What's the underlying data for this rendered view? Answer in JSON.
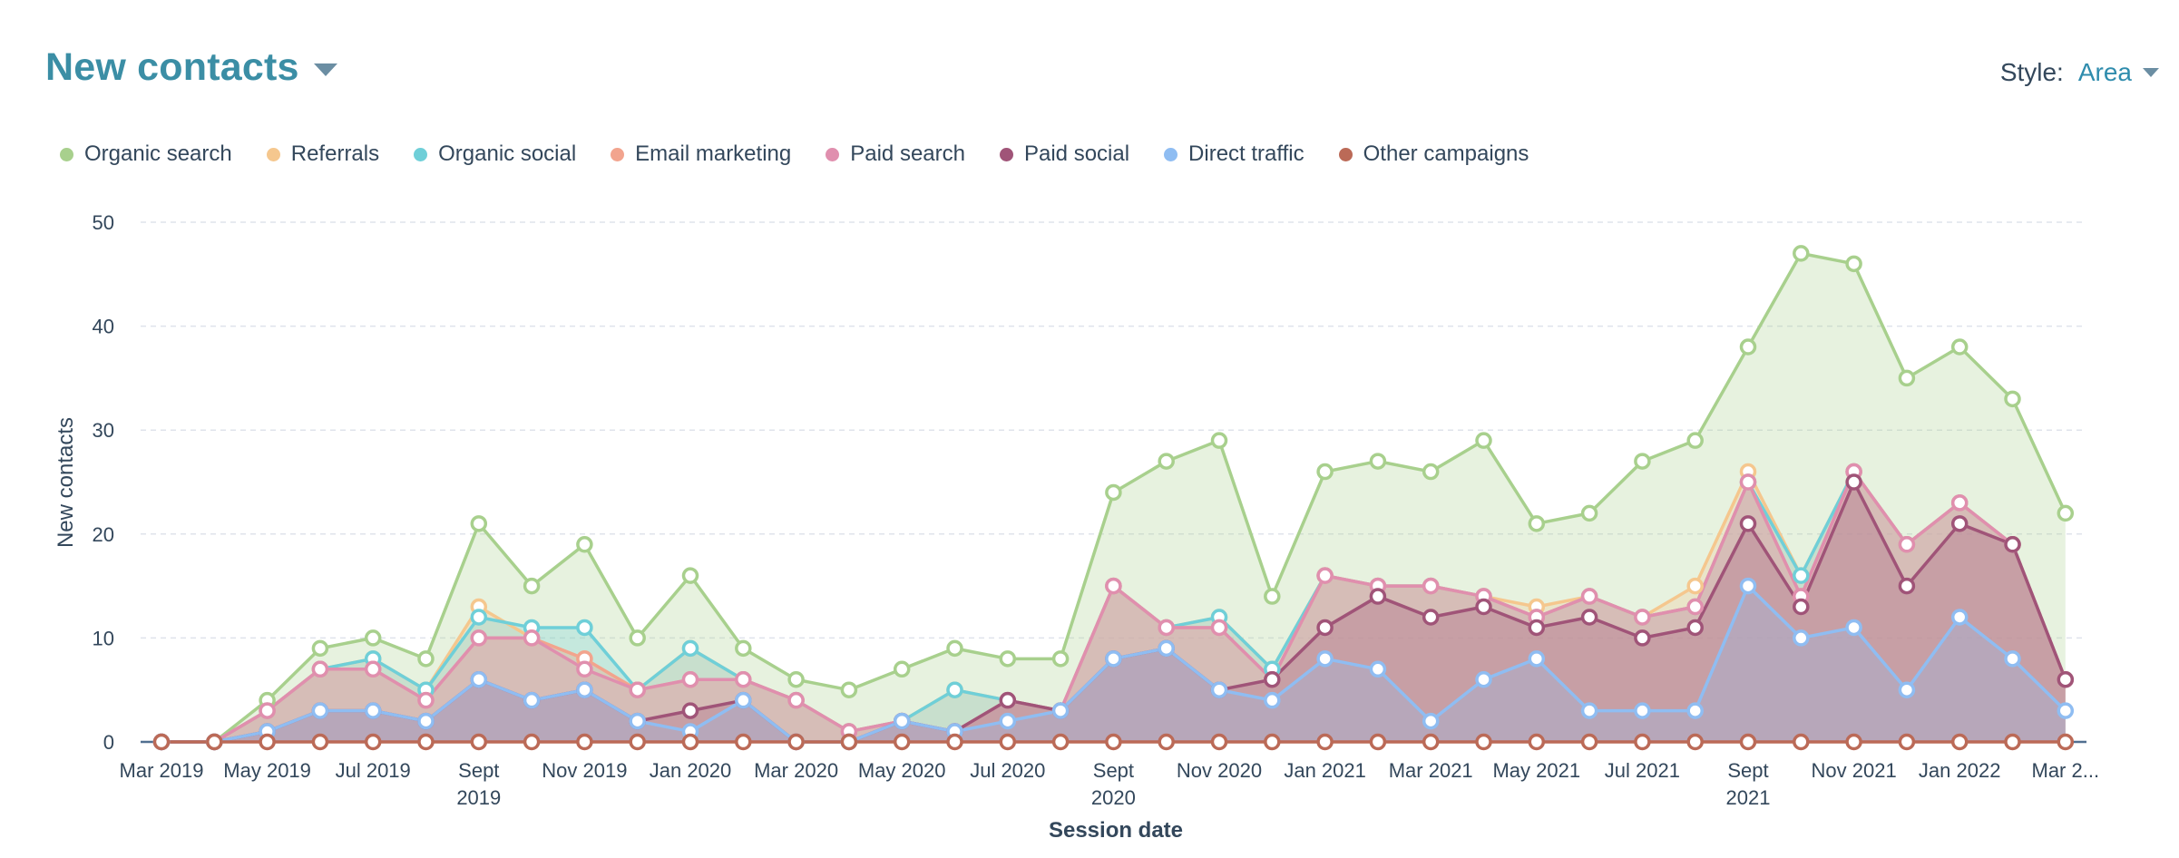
{
  "header": {
    "title": "New contacts",
    "style_label": "Style:",
    "style_value": "Area"
  },
  "colors": {
    "title": "#3b8ea5",
    "grid": "#dfe3eb",
    "axis": "#516f90"
  },
  "chart_data": {
    "type": "area",
    "stacked": true,
    "ylabel": "New contacts",
    "xlabel": "Session date",
    "ylim": [
      0,
      50
    ],
    "yticks": [
      0,
      10,
      20,
      30,
      40,
      50
    ],
    "grid": true,
    "legend_position": "top-left",
    "x": [
      "Mar 2019",
      "Apr 2019",
      "May 2019",
      "Jun 2019",
      "Jul 2019",
      "Aug 2019",
      "Sept 2019",
      "Oct 2019",
      "Nov 2019",
      "Dec 2019",
      "Jan 2020",
      "Feb 2020",
      "Mar 2020",
      "Apr 2020",
      "May 2020",
      "Jun 2020",
      "Jul 2020",
      "Aug 2020",
      "Sept 2020",
      "Oct 2020",
      "Nov 2020",
      "Dec 2020",
      "Jan 2021",
      "Feb 2021",
      "Mar 2021",
      "Apr 2021",
      "May 2021",
      "Jun 2021",
      "Jul 2021",
      "Aug 2021",
      "Sept 2021",
      "Oct 2021",
      "Nov 2021",
      "Dec 2021",
      "Jan 2022",
      "Feb 2022",
      "Mar 2022"
    ],
    "tick_labels": [
      {
        "i": 0,
        "lines": [
          "Mar 2019"
        ]
      },
      {
        "i": 2,
        "lines": [
          "May 2019"
        ]
      },
      {
        "i": 4,
        "lines": [
          "Jul 2019"
        ]
      },
      {
        "i": 6,
        "lines": [
          "Sept",
          "2019"
        ]
      },
      {
        "i": 8,
        "lines": [
          "Nov 2019"
        ]
      },
      {
        "i": 10,
        "lines": [
          "Jan 2020"
        ]
      },
      {
        "i": 12,
        "lines": [
          "Mar 2020"
        ]
      },
      {
        "i": 14,
        "lines": [
          "May 2020"
        ]
      },
      {
        "i": 16,
        "lines": [
          "Jul 2020"
        ]
      },
      {
        "i": 18,
        "lines": [
          "Sept",
          "2020"
        ]
      },
      {
        "i": 20,
        "lines": [
          "Nov 2020"
        ]
      },
      {
        "i": 22,
        "lines": [
          "Jan 2021"
        ]
      },
      {
        "i": 24,
        "lines": [
          "Mar 2021"
        ]
      },
      {
        "i": 26,
        "lines": [
          "May 2021"
        ]
      },
      {
        "i": 28,
        "lines": [
          "Jul 2021"
        ]
      },
      {
        "i": 30,
        "lines": [
          "Sept",
          "2021"
        ]
      },
      {
        "i": 32,
        "lines": [
          "Nov 2021"
        ]
      },
      {
        "i": 34,
        "lines": [
          "Jan 2022"
        ]
      },
      {
        "i": 36,
        "lines": [
          "Mar 2..."
        ]
      }
    ],
    "series": [
      {
        "name": "Organic search",
        "color": "#a8d08d",
        "cumulative": [
          0,
          0,
          4,
          9,
          10,
          8,
          21,
          15,
          19,
          10,
          16,
          9,
          6,
          5,
          7,
          9,
          8,
          8,
          24,
          27,
          29,
          14,
          26,
          27,
          26,
          29,
          21,
          22,
          27,
          29,
          38,
          47,
          46,
          35,
          38,
          33,
          22
        ]
      },
      {
        "name": "Referrals",
        "color": "#f5c78e",
        "cumulative": [
          0,
          0,
          3,
          7,
          8,
          5,
          13,
          10,
          8,
          5,
          9,
          6,
          4,
          1,
          2,
          5,
          4,
          3,
          15,
          11,
          12,
          7,
          16,
          15,
          15,
          14,
          13,
          14,
          12,
          15,
          26,
          16,
          26,
          19,
          23,
          19,
          6
        ]
      },
      {
        "name": "Organic social",
        "color": "#6fcfd8",
        "cumulative": [
          0,
          0,
          3,
          7,
          8,
          5,
          12,
          11,
          11,
          5,
          9,
          6,
          4,
          1,
          2,
          5,
          4,
          3,
          15,
          11,
          12,
          7,
          16,
          15,
          15,
          14,
          12,
          14,
          12,
          13,
          25,
          16,
          26,
          19,
          23,
          19,
          6
        ]
      },
      {
        "name": "Email marketing",
        "color": "#f2a48e",
        "cumulative": [
          0,
          0,
          3,
          7,
          7,
          4,
          10,
          10,
          8,
          5,
          6,
          6,
          4,
          1,
          2,
          1,
          4,
          3,
          15,
          11,
          11,
          6,
          16,
          15,
          15,
          14,
          12,
          14,
          12,
          13,
          25,
          14,
          26,
          19,
          23,
          19,
          6
        ]
      },
      {
        "name": "Paid search",
        "color": "#e08fae",
        "cumulative": [
          0,
          0,
          3,
          7,
          7,
          4,
          10,
          10,
          7,
          5,
          6,
          6,
          4,
          1,
          2,
          1,
          4,
          3,
          15,
          11,
          11,
          6,
          16,
          15,
          15,
          14,
          12,
          14,
          12,
          13,
          25,
          14,
          26,
          19,
          23,
          19,
          6
        ]
      },
      {
        "name": "Paid social",
        "color": "#a05478",
        "cumulative": [
          0,
          0,
          1,
          3,
          3,
          2,
          6,
          4,
          5,
          2,
          3,
          4,
          0,
          0,
          2,
          1,
          4,
          3,
          8,
          9,
          5,
          6,
          11,
          14,
          12,
          13,
          11,
          12,
          10,
          11,
          21,
          13,
          25,
          15,
          21,
          19,
          6
        ]
      },
      {
        "name": "Direct traffic",
        "color": "#8fbdf2",
        "cumulative": [
          0,
          0,
          1,
          3,
          3,
          2,
          6,
          4,
          5,
          2,
          1,
          4,
          0,
          0,
          2,
          1,
          2,
          3,
          8,
          9,
          5,
          4,
          8,
          7,
          2,
          6,
          8,
          3,
          3,
          3,
          15,
          10,
          11,
          5,
          12,
          8,
          3
        ]
      },
      {
        "name": "Other campaigns",
        "color": "#bb6a57",
        "cumulative": [
          0,
          0,
          0,
          0,
          0,
          0,
          0,
          0,
          0,
          0,
          0,
          0,
          0,
          0,
          0,
          0,
          0,
          0,
          0,
          0,
          0,
          0,
          0,
          0,
          0,
          0,
          0,
          0,
          0,
          0,
          0,
          0,
          0,
          0,
          0,
          0,
          0
        ]
      }
    ]
  }
}
